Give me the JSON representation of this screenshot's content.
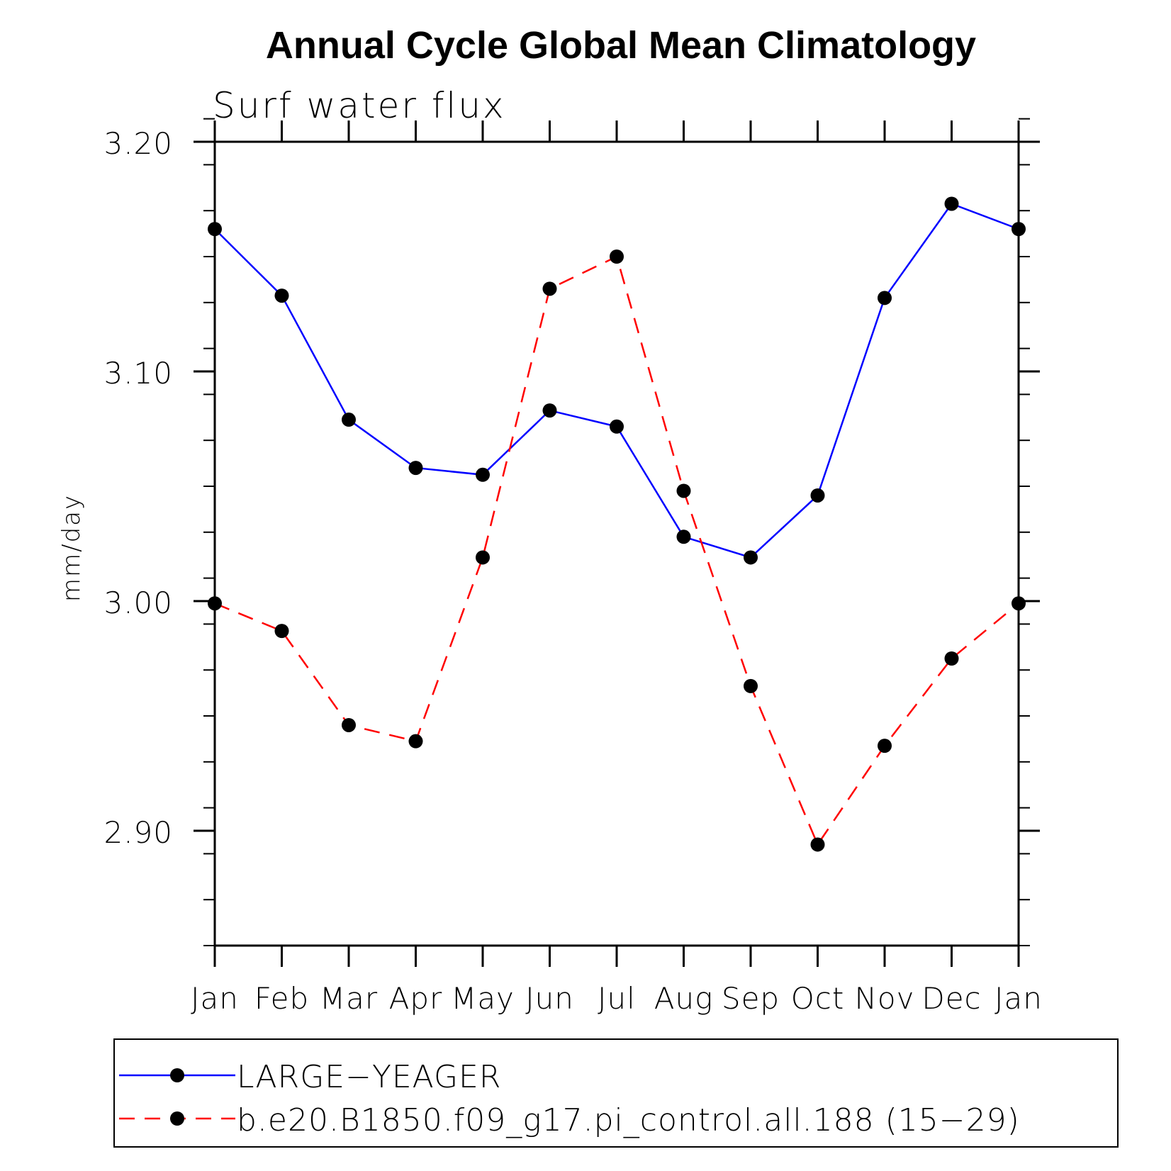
{
  "chart_data": {
    "type": "line",
    "title": "Annual Cycle Global Mean Climatology",
    "subtitle": "Surf water flux",
    "xlabel": "",
    "ylabel": "mm/day",
    "categories": [
      "Jan",
      "Feb",
      "Mar",
      "Apr",
      "May",
      "Jun",
      "Jul",
      "Aug",
      "Sep",
      "Oct",
      "Nov",
      "Dec",
      "Jan"
    ],
    "ylim": [
      2.85,
      3.2
    ],
    "yticks": [
      2.9,
      3.0,
      3.1,
      3.2
    ],
    "ytick_labels": [
      "2.90",
      "3.00",
      "3.10",
      "3.20"
    ],
    "yminor_step": 0.02,
    "legend_position": "bottom",
    "series": [
      {
        "name": "LARGE−YEAGER",
        "color": "#0000ff",
        "style": "solid",
        "values": [
          3.162,
          3.133,
          3.079,
          3.058,
          3.055,
          3.083,
          3.076,
          3.028,
          3.019,
          3.046,
          3.132,
          3.173,
          3.162
        ]
      },
      {
        "name": "b.e20.B1850.f09_g17.pi_control.all.188 (15−29)",
        "color": "#ff0000",
        "style": "dashed",
        "values": [
          2.999,
          2.987,
          2.946,
          2.939,
          3.019,
          3.136,
          3.15,
          3.048,
          2.963,
          2.894,
          2.937,
          2.975,
          2.999
        ]
      }
    ]
  }
}
